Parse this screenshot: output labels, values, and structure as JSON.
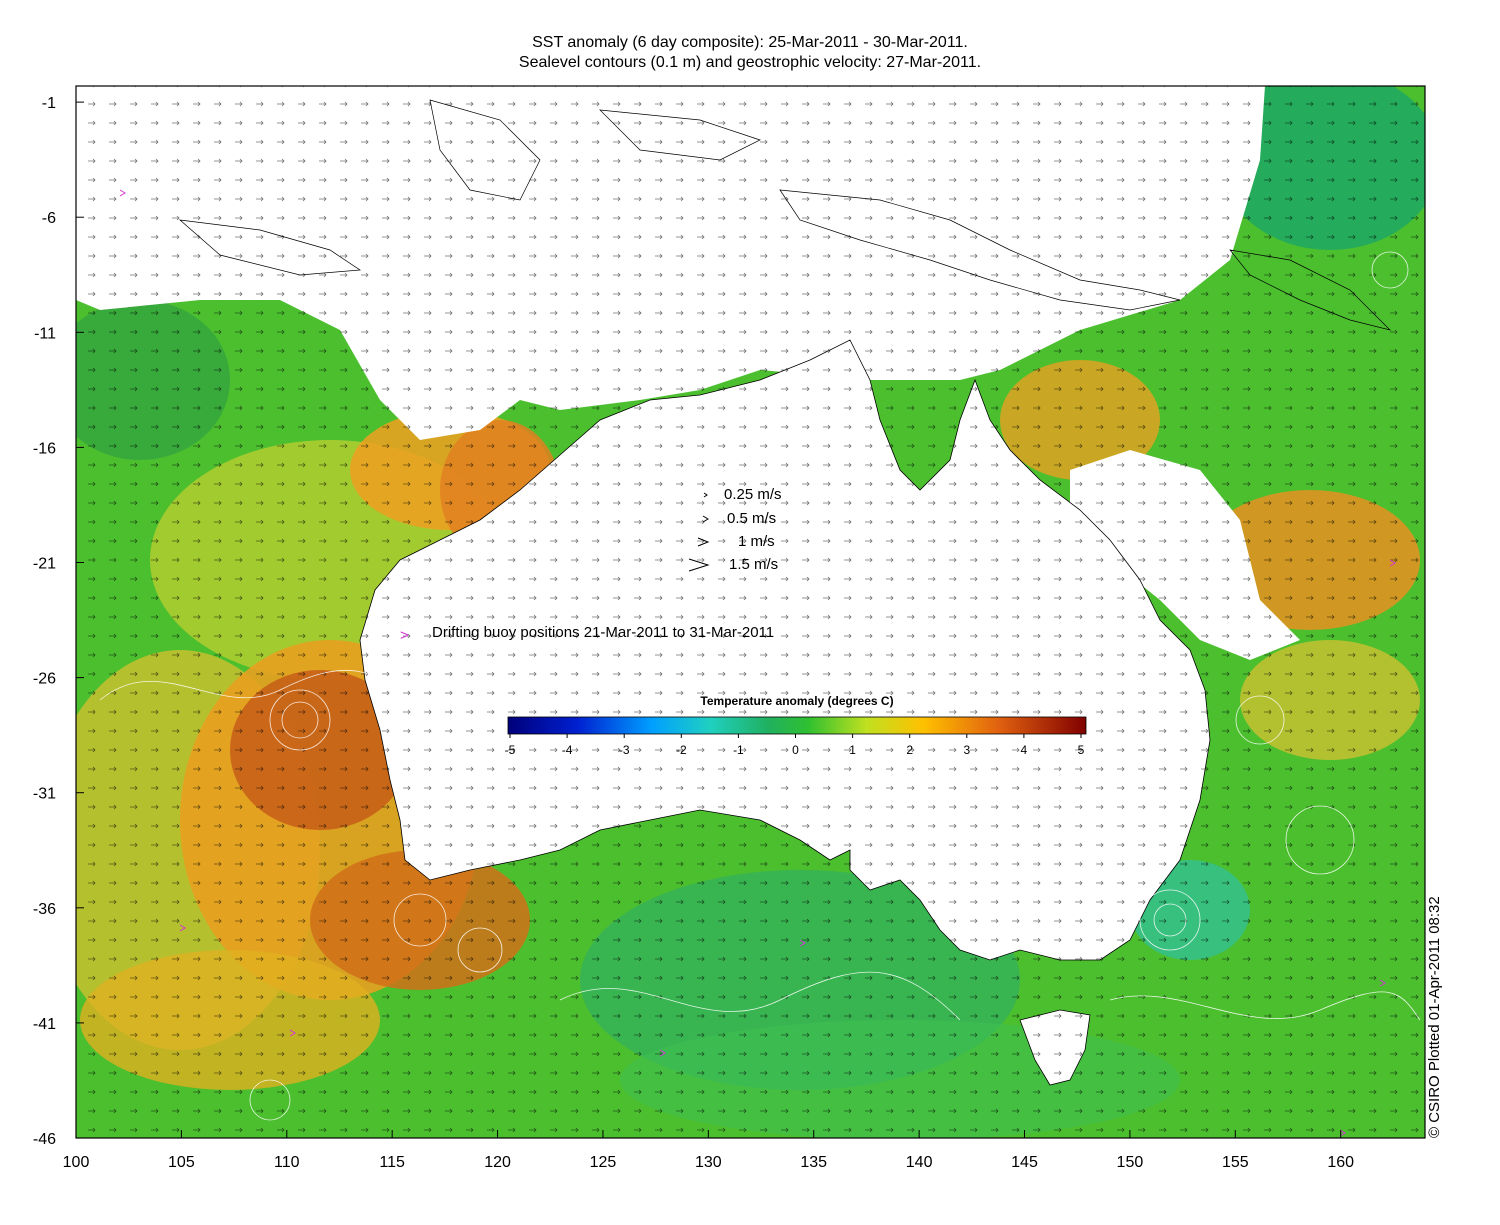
{
  "title": {
    "line1": "SST anomaly (6 day composite): 25-Mar-2011 - 30-Mar-2011.",
    "line2": "Sealevel contours (0.1 m) and geostrophic velocity: 27-Mar-2011."
  },
  "map": {
    "x_ticks": [
      "100",
      "105",
      "110",
      "115",
      "120",
      "125",
      "130",
      "135",
      "140",
      "145",
      "150",
      "155",
      "160"
    ],
    "y_ticks": [
      "-1",
      "-6",
      "-11",
      "-16",
      "-21",
      "-26",
      "-31",
      "-36",
      "-41",
      "-46"
    ],
    "lon_range": [
      100,
      164
    ],
    "lat_range": [
      -46,
      -0.3
    ]
  },
  "velocity_legend": {
    "items": [
      "0.25 m/s",
      "0.5 m/s",
      "1 m/s",
      "1.5 m/s"
    ]
  },
  "buoy_legend": {
    "symbol": ">",
    "label": "Drifting buoy positions 21-Mar-2011 to 31-Mar-2011",
    "color": "#d633d6"
  },
  "colorbar": {
    "title": "Temperature anomaly (degrees C)",
    "ticks": [
      "-5",
      "-4",
      "-3",
      "-2",
      "-1",
      "0",
      "1",
      "2",
      "3",
      "4",
      "5"
    ]
  },
  "credit": "© CSIRO Plotted 01-Apr-2011 08:32",
  "colors": {
    "ocean_warm": "#e8a020",
    "ocean_hot": "#c0501a",
    "ocean_neutral": "#3fba2c",
    "ocean_cool": "#20b890",
    "land": "#ffffff"
  }
}
